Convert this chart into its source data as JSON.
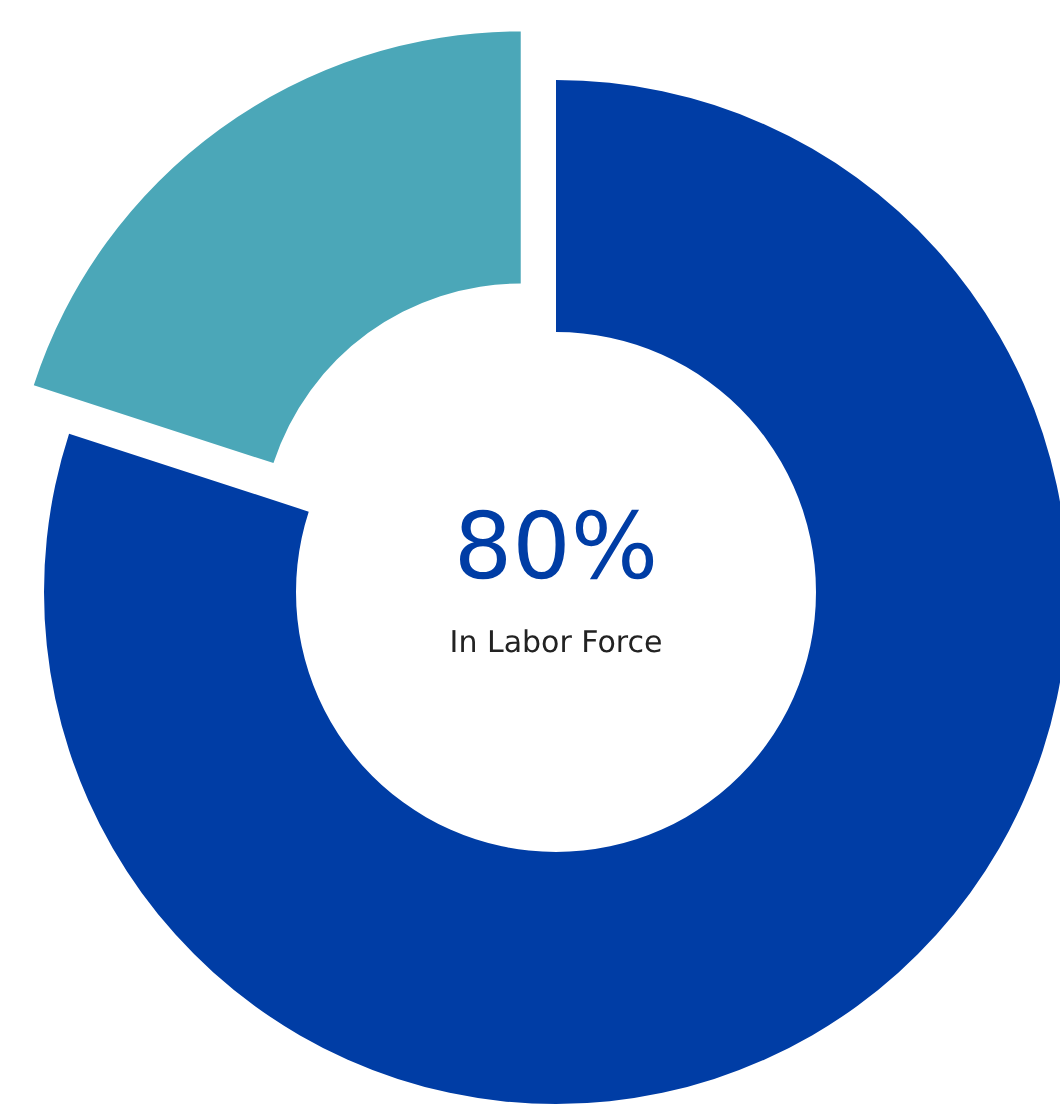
{
  "chart_data": {
    "type": "donut",
    "categories": [
      "In Labor Force",
      null
    ],
    "values": [
      80,
      20
    ],
    "colors": [
      "#003da5",
      "#4ba7b8"
    ],
    "value_labels": [
      "80%",
      null
    ]
  }
}
